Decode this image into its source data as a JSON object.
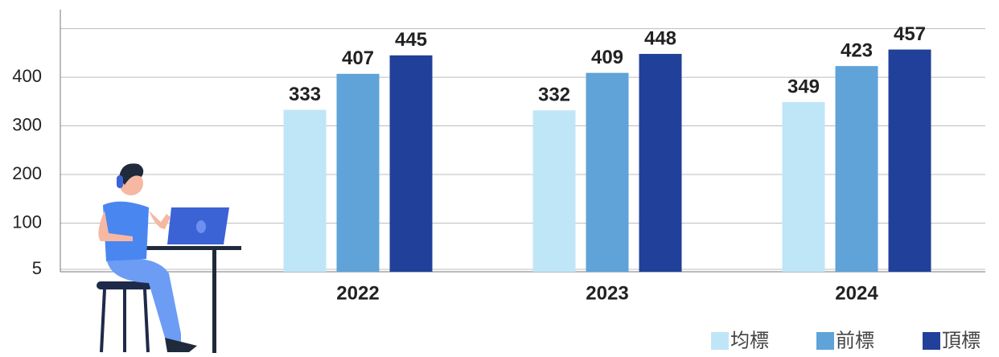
{
  "chart_data": {
    "type": "bar",
    "categories": [
      "2022",
      "2023",
      "2024"
    ],
    "series": [
      {
        "name": "均標",
        "color": "#bfe6f7",
        "values": [
          333,
          332,
          349
        ]
      },
      {
        "name": "前標",
        "color": "#5fa3d8",
        "values": [
          407,
          409,
          423
        ]
      },
      {
        "name": "頂標",
        "color": "#21409a",
        "values": [
          445,
          448,
          457
        ]
      }
    ],
    "ylim": [
      0,
      539
    ],
    "yticks": [
      5,
      100,
      200,
      300,
      400,
      {
        "value": 500,
        "label": null
      }
    ],
    "grid": true,
    "legend": "bottom-right"
  }
}
